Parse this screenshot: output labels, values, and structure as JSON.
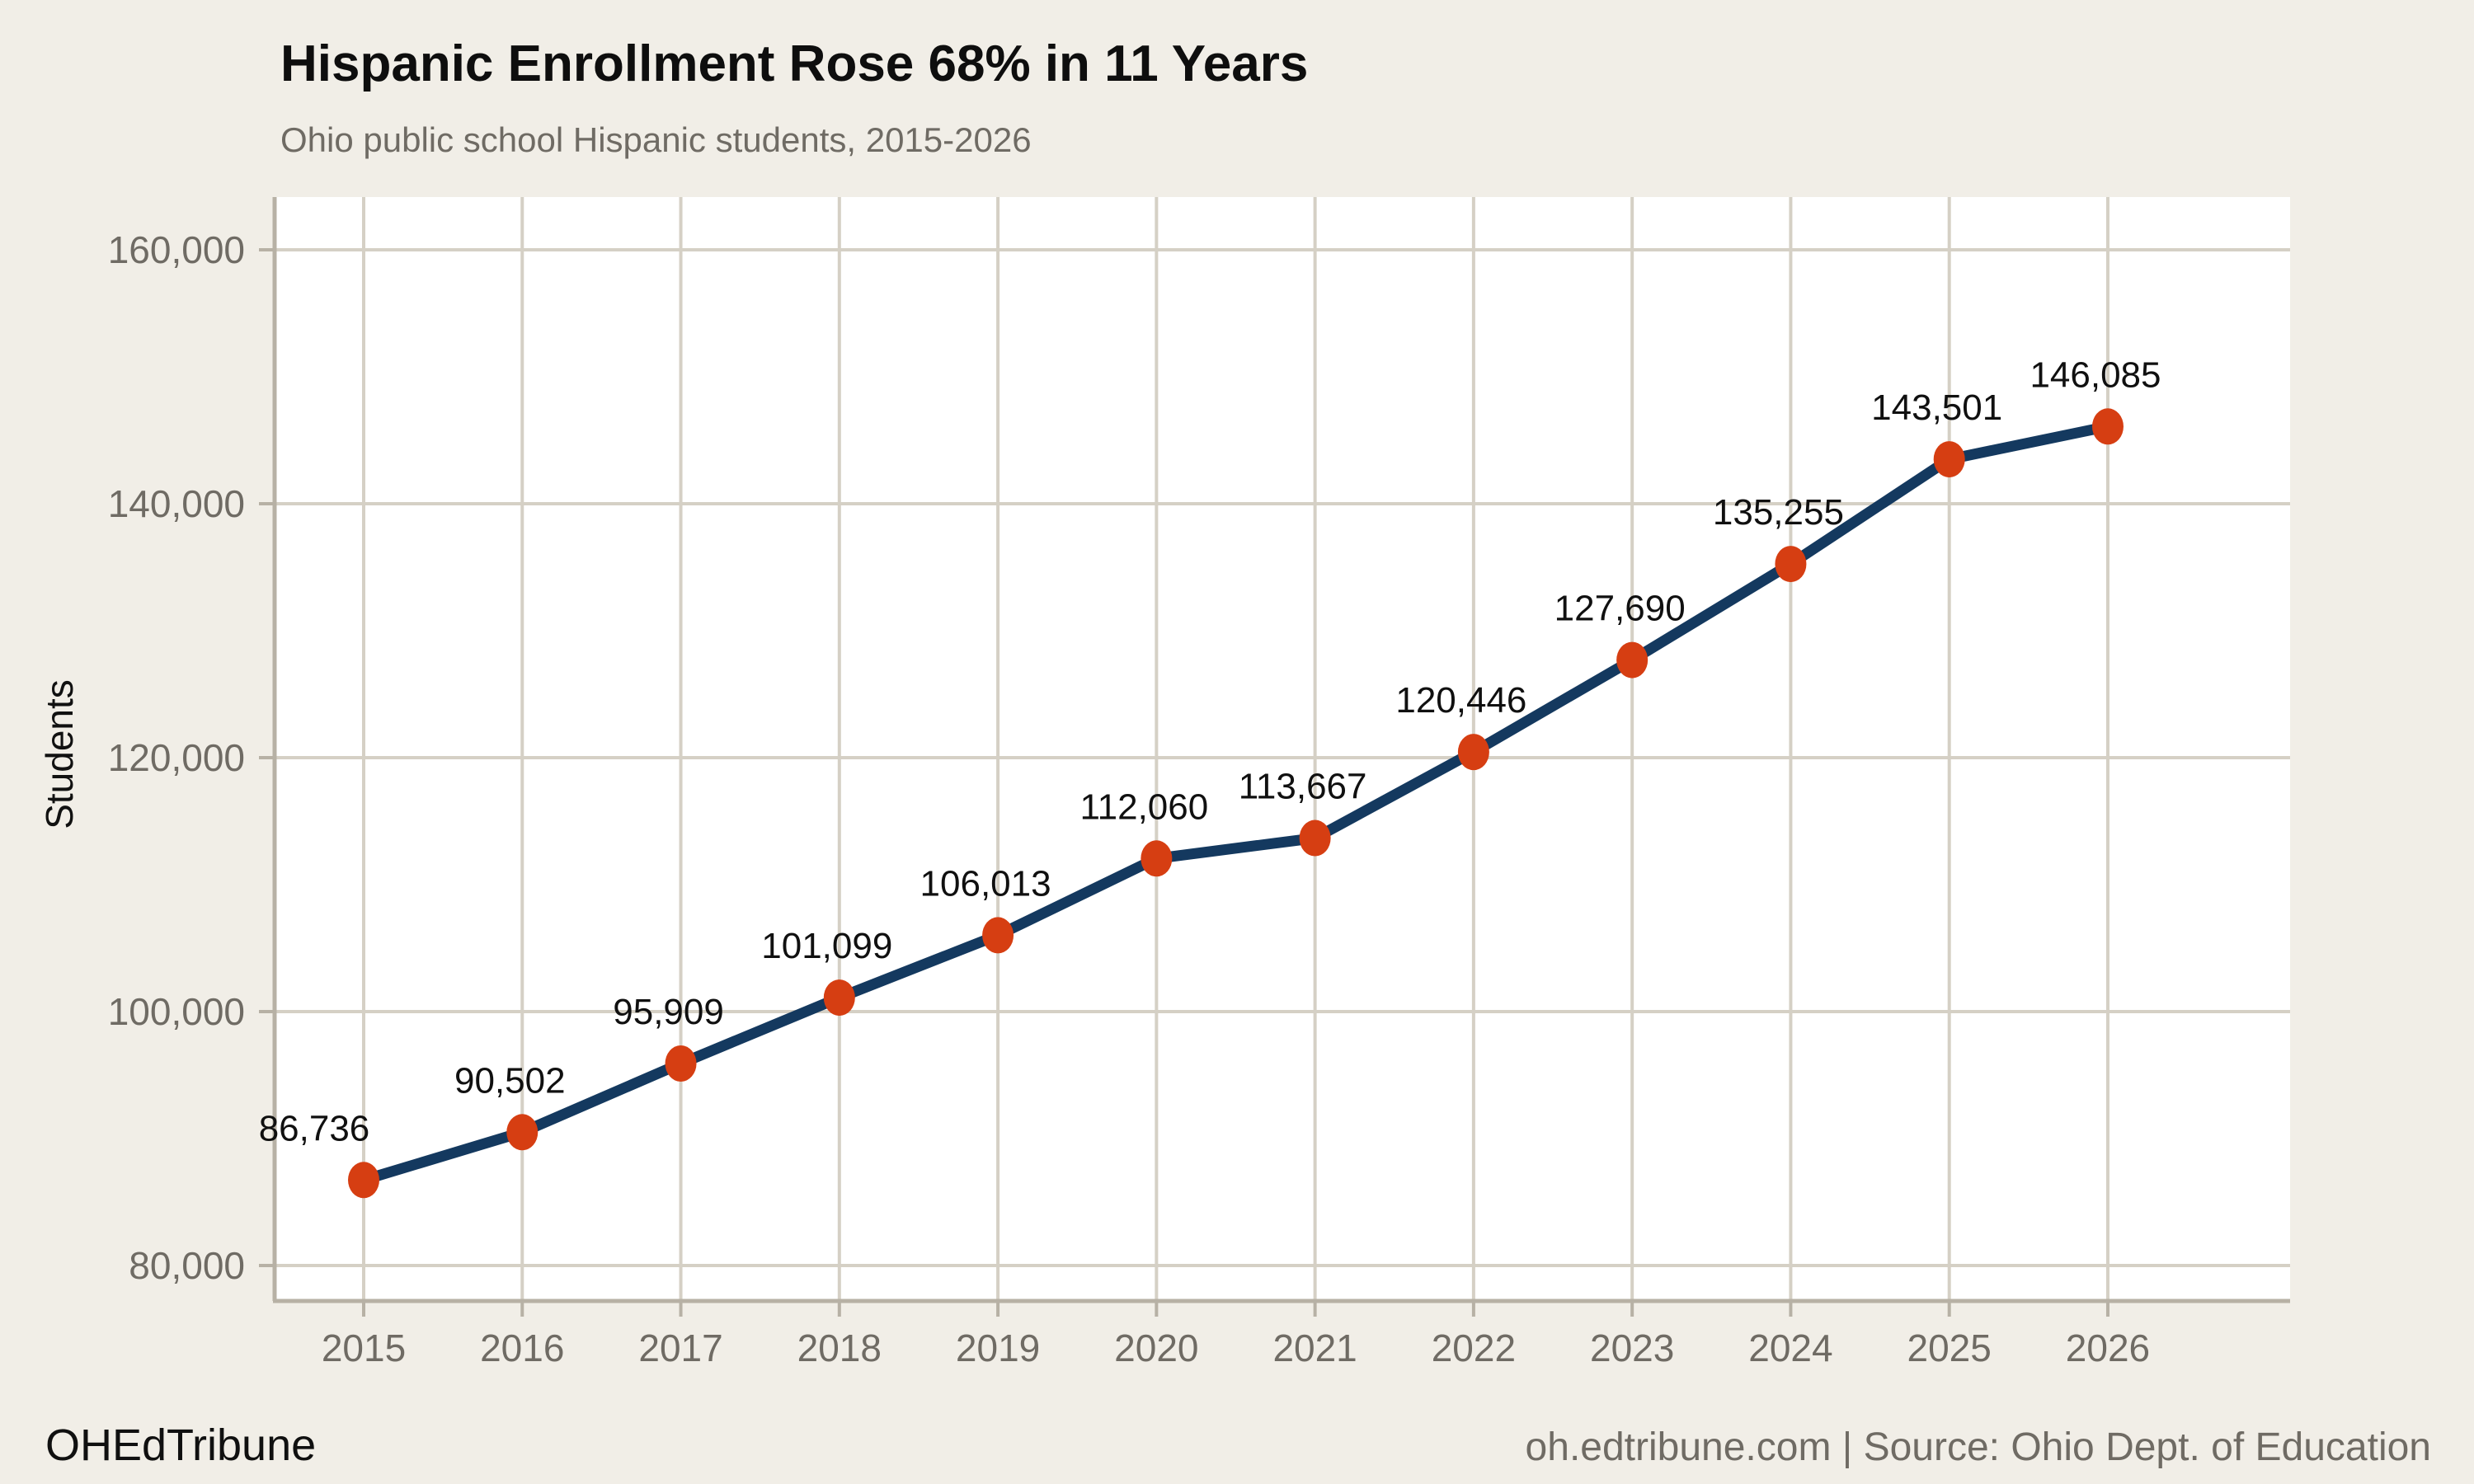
{
  "page": {
    "title": "Hispanic Enrollment Rose 68% in 11 Years",
    "subtitle": "Ohio public school Hispanic students, 2015-2026",
    "footer_brand": "OHEdTribune",
    "footer_source": "oh.edtribune.com | Source: Ohio Dept. of Education"
  },
  "chart_data": {
    "type": "line",
    "title": "Hispanic Enrollment Rose 68% in 11 Years",
    "subtitle": "Ohio public school Hispanic students, 2015-2026",
    "xlabel": "",
    "ylabel": "Students",
    "categories": [
      "2015",
      "2016",
      "2017",
      "2018",
      "2019",
      "2020",
      "2021",
      "2022",
      "2023",
      "2024",
      "2025",
      "2026"
    ],
    "values": [
      86736,
      90502,
      95909,
      101099,
      106013,
      112060,
      113667,
      120446,
      127690,
      135255,
      143501,
      146085
    ],
    "value_labels": [
      "86,736",
      "90,502",
      "95,909",
      "101,099",
      "106,013",
      "112,060",
      "113,667",
      "120,446",
      "127,690",
      "135,255",
      "143,501",
      "146,085"
    ],
    "yticks": [
      80000,
      100000,
      120000,
      140000,
      160000
    ],
    "ytick_labels": [
      "80,000",
      "100,000",
      "120,000",
      "140,000",
      "160,000"
    ],
    "ylim": [
      76200,
      163900
    ],
    "grid": true,
    "legend": false,
    "point_markers": true,
    "source": "oh.edtribune.com | Source: Ohio Dept. of Education",
    "brand": "OHEdTribune",
    "colors": {
      "line": "#14395f",
      "marker": "#d63e12",
      "grid": "#d5d0c5",
      "axis": "#b7b1a5",
      "tick_text": "#6f6b64",
      "title": "#0e0e0e",
      "subtitle": "#6f6b64",
      "data_label": "#101010",
      "plot_bg": "#ffffff",
      "page_bg": "#f1eee7"
    }
  }
}
